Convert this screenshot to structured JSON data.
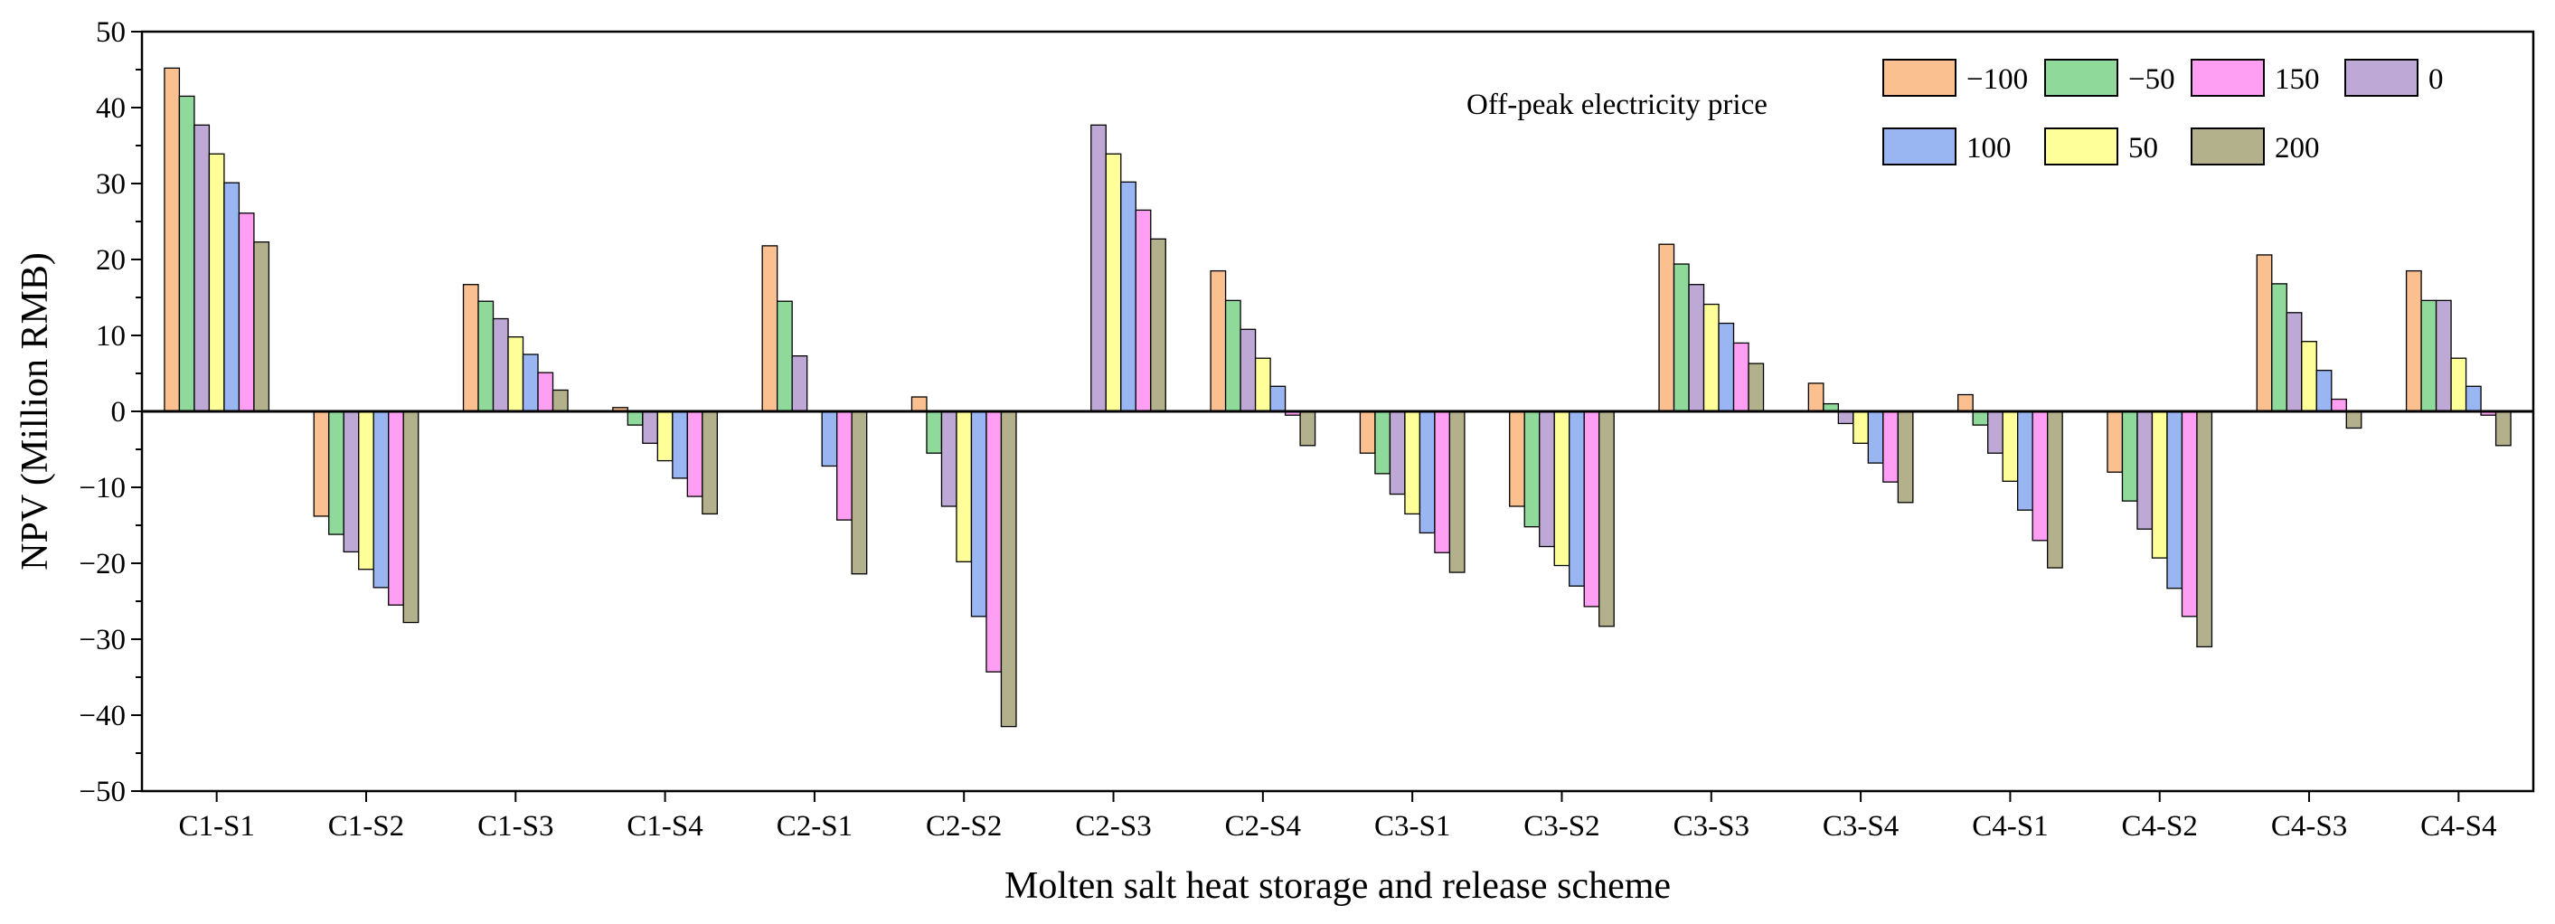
{
  "chart_data": {
    "type": "bar",
    "title": "",
    "xlabel": "Molten salt heat storage and release scheme",
    "ylabel": "NPV (Million RMB)",
    "ylim": [
      -50,
      50
    ],
    "yticks": [
      -50,
      -40,
      -30,
      -20,
      -10,
      0,
      10,
      20,
      30,
      40,
      50
    ],
    "ytick_labels": [
      "−50",
      "−40",
      "−30",
      "−20",
      "−10",
      "0",
      "10",
      "20",
      "30",
      "40",
      "50"
    ],
    "grid": false,
    "legend_title": "Off-peak electricity price",
    "legend_position": "top-right",
    "categories": [
      "C1-S1",
      "C1-S2",
      "C1-S3",
      "C1-S4",
      "C2-S1",
      "C2-S2",
      "C2-S3",
      "C2-S4",
      "C3-S1",
      "C3-S2",
      "C3-S3",
      "C3-S4",
      "C4-S1",
      "C4-S2",
      "C4-S3",
      "C4-S4"
    ],
    "series": [
      {
        "name": "−100",
        "color": "#FAC090",
        "values": [
          45.2,
          -13.8,
          16.7,
          0.5,
          21.8,
          1.9,
          0,
          18.5,
          -5.5,
          -12.5,
          22.0,
          3.7,
          2.2,
          -8.0,
          20.6,
          18.5
        ]
      },
      {
        "name": "−50",
        "color": "#8FD99B",
        "values": [
          41.5,
          -16.2,
          14.5,
          -1.8,
          14.5,
          -5.5,
          0,
          14.6,
          -8.2,
          -15.2,
          19.4,
          1.0,
          -1.8,
          -11.8,
          16.8,
          14.6
        ]
      },
      {
        "name": "0",
        "color": "#BEA9D6",
        "values": [
          37.7,
          -18.5,
          12.2,
          -4.2,
          7.3,
          -12.5,
          37.7,
          10.8,
          -10.9,
          -17.8,
          16.7,
          -1.6,
          -5.5,
          -15.5,
          13.0,
          14.6
        ]
      },
      {
        "name": "50",
        "color": "#FFFF99",
        "values": [
          33.9,
          -20.8,
          9.8,
          -6.5,
          0,
          -19.8,
          33.9,
          7.0,
          -13.5,
          -20.3,
          14.1,
          -4.2,
          -9.2,
          -19.3,
          9.2,
          7.0
        ]
      },
      {
        "name": "100",
        "color": "#99B6F2",
        "values": [
          30.1,
          -23.2,
          7.5,
          -8.8,
          -7.2,
          -27.0,
          30.2,
          3.3,
          -16.0,
          -23.0,
          11.6,
          -6.8,
          -13.0,
          -23.3,
          5.4,
          3.3
        ]
      },
      {
        "name": "150",
        "color": "#FF9FF3",
        "values": [
          26.1,
          -25.5,
          5.1,
          -11.2,
          -14.3,
          -34.3,
          26.5,
          -0.5,
          -18.6,
          -25.7,
          9.0,
          -9.3,
          -17.0,
          -27.0,
          1.6,
          -0.5
        ]
      },
      {
        "name": "200",
        "color": "#B3B18C",
        "values": [
          22.3,
          -27.8,
          2.8,
          -13.5,
          -21.4,
          -41.5,
          22.7,
          -4.5,
          -21.2,
          -28.3,
          6.3,
          -12.0,
          -20.6,
          -31.0,
          -2.2,
          -4.5
        ]
      }
    ],
    "legend_order": [
      "−100",
      "−50",
      "150",
      "0",
      "100",
      "50",
      "200"
    ]
  }
}
